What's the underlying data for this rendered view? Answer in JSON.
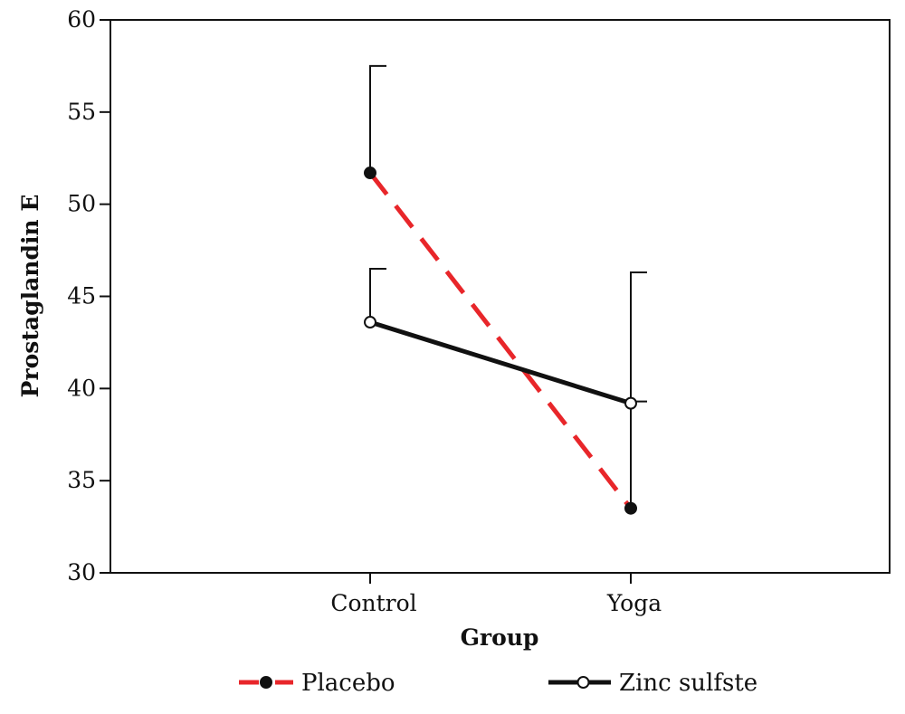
{
  "chart_data": {
    "type": "line",
    "title": "",
    "xlabel": "Group",
    "ylabel": "Prostaglandin E",
    "categories": [
      "Control",
      "Yoga"
    ],
    "ylim": [
      30,
      60
    ],
    "yticks": [
      "30",
      "35",
      "40",
      "45",
      "50",
      "55",
      "60"
    ],
    "grid": false,
    "legend_position": "bottom",
    "series": [
      {
        "name": "Placebo",
        "values": [
          51.7,
          33.5
        ],
        "error_upper": [
          57.5,
          39.3
        ],
        "color": "#e8262a",
        "line_style": "dashed",
        "marker": "filled-circle"
      },
      {
        "name": "Zinc sulfste",
        "values": [
          43.6,
          39.2
        ],
        "error_upper": [
          46.5,
          46.3
        ],
        "color": "#111111",
        "line_style": "solid",
        "marker": "open-circle"
      }
    ]
  }
}
